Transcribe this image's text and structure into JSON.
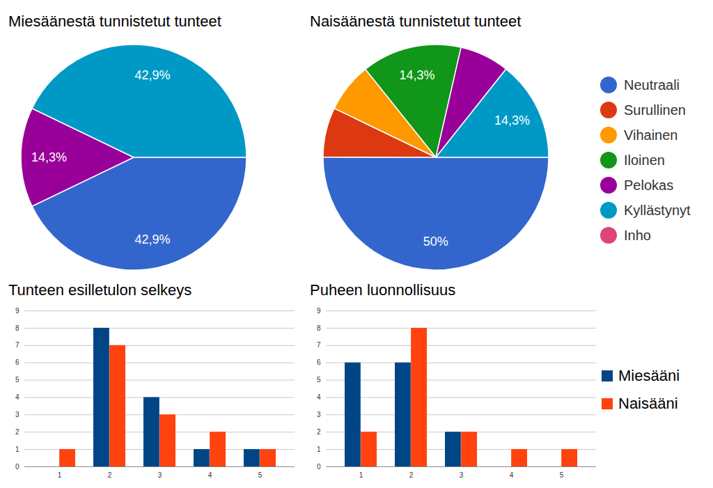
{
  "chart_data": [
    {
      "type": "pie",
      "title": "Miesäänestä tunnistetut tunteet",
      "categories": [
        "Neutraali",
        "Surullinen",
        "Vihainen",
        "Iloinen",
        "Pelokas",
        "Kyllästynyt",
        "Inho"
      ],
      "values": [
        42.9,
        0,
        0,
        0,
        14.3,
        42.9,
        0
      ],
      "colors": [
        "#3366cc",
        "#dc3912",
        "#ff9900",
        "#109618",
        "#990099",
        "#0099c6",
        "#dd4477"
      ],
      "data_labels": true,
      "value_labels": [
        "42,9%",
        null,
        null,
        null,
        "14,3%",
        "42,9%",
        null
      ]
    },
    {
      "type": "pie",
      "title": "Naisäänestä tunnistetut tunteet",
      "categories": [
        "Neutraali",
        "Surullinen",
        "Vihainen",
        "Iloinen",
        "Pelokas",
        "Kyllästynyt",
        "Inho"
      ],
      "values": [
        50,
        7.1,
        7.1,
        14.3,
        7.1,
        14.3,
        0
      ],
      "colors": [
        "#3366cc",
        "#dc3912",
        "#ff9900",
        "#109618",
        "#990099",
        "#0099c6",
        "#dd4477"
      ],
      "data_labels": true,
      "value_labels": [
        "50%",
        null,
        null,
        "14,3%",
        null,
        "14,3%",
        null
      ],
      "legend": "right"
    },
    {
      "type": "bar",
      "title": "Tunteen esilletulon selkeys",
      "categories": [
        "1",
        "2",
        "3",
        "4",
        "5"
      ],
      "series": [
        {
          "name": "Miesääni",
          "color": "#004586",
          "values": [
            0,
            8,
            4,
            1,
            1
          ]
        },
        {
          "name": "Naisääni",
          "color": "#ff420e",
          "values": [
            1,
            7,
            3,
            2,
            1
          ]
        }
      ],
      "ylim": [
        0,
        9
      ],
      "yticks": [
        0,
        1,
        2,
        3,
        4,
        5,
        6,
        7,
        8,
        9
      ],
      "grid": true
    },
    {
      "type": "bar",
      "title": "Puheen luonnollisuus",
      "categories": [
        "1",
        "2",
        "3",
        "4",
        "5"
      ],
      "series": [
        {
          "name": "Miesääni",
          "color": "#004586",
          "values": [
            6,
            6,
            2,
            0,
            0
          ]
        },
        {
          "name": "Naisääni",
          "color": "#ff420e",
          "values": [
            2,
            8,
            2,
            1,
            1
          ]
        }
      ],
      "ylim": [
        0,
        9
      ],
      "yticks": [
        0,
        1,
        2,
        3,
        4,
        5,
        6,
        7,
        8,
        9
      ],
      "grid": true,
      "legend": "right"
    }
  ]
}
